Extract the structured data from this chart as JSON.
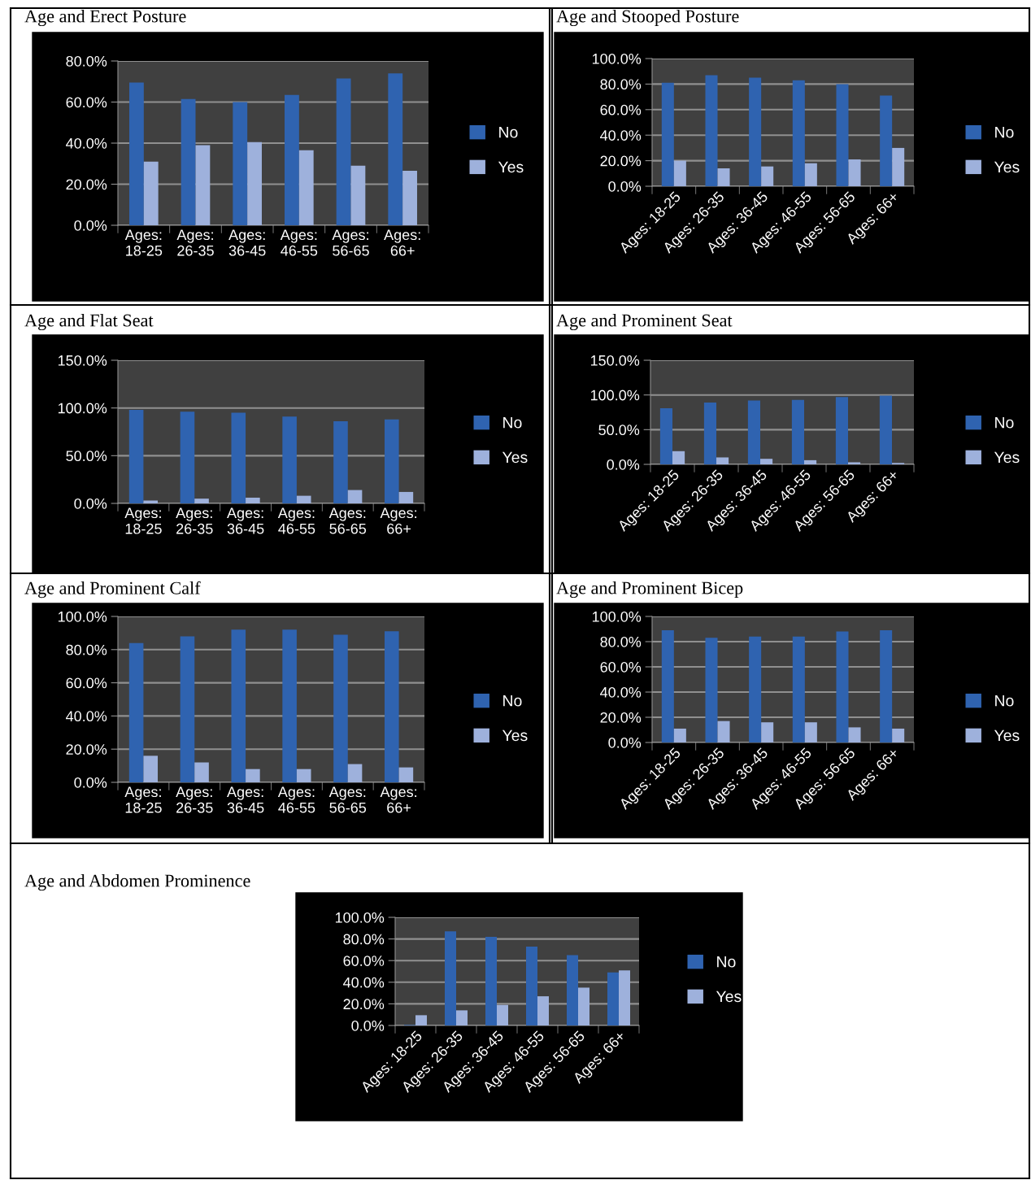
{
  "chart_data": [
    {
      "type": "bar",
      "title": "Age and Erect Posture",
      "categories": [
        "Ages: 18-25",
        "Ages: 26-35",
        "Ages: 36-45",
        "Ages: 46-55",
        "Ages: 56-65",
        "Ages: 66+"
      ],
      "series": [
        {
          "name": "No",
          "color": "#2f63b0",
          "values": [
            69.5,
            61.5,
            60,
            63.5,
            71.5,
            74
          ]
        },
        {
          "name": "Yes",
          "color": "#9eb1dc",
          "values": [
            31,
            39,
            40.5,
            36.5,
            29,
            26.5
          ]
        }
      ],
      "ylim": [
        0,
        80
      ],
      "yticks": [
        {
          "value": 0,
          "label": "0.0%"
        },
        {
          "value": 20,
          "label": "20.0%"
        },
        {
          "value": 40,
          "label": "40.0%"
        },
        {
          "value": 60,
          "label": "60.0%"
        },
        {
          "value": 80,
          "label": "80.0%"
        }
      ],
      "grid": "y",
      "legend": "right"
    },
    {
      "type": "bar",
      "title": "Age and Stooped Posture",
      "categories": [
        "Ages: 18-25",
        "Ages: 26-35",
        "Ages: 36-45",
        "Ages: 46-55",
        "Ages: 56-65",
        "Ages: 66+"
      ],
      "series": [
        {
          "name": "No",
          "color": "#2f63b0",
          "values": [
            81,
            87,
            85,
            83,
            80,
            71
          ]
        },
        {
          "name": "Yes",
          "color": "#9eb1dc",
          "values": [
            20,
            14,
            15.5,
            18,
            21,
            30
          ]
        }
      ],
      "ylim": [
        0,
        100
      ],
      "yticks": [
        {
          "value": 0,
          "label": "0.0%"
        },
        {
          "value": 20,
          "label": "20.0%"
        },
        {
          "value": 40,
          "label": "40.0%"
        },
        {
          "value": 60,
          "label": "60.0%"
        },
        {
          "value": 80,
          "label": "80.0%"
        },
        {
          "value": 100,
          "label": "100.0%"
        }
      ],
      "grid": "y",
      "legend": "right"
    },
    {
      "type": "bar",
      "title": "Age and Flat Seat",
      "categories": [
        "Ages: 18-25",
        "Ages: 26-35",
        "Ages: 36-45",
        "Ages: 46-55",
        "Ages: 56-65",
        "Ages: 66+"
      ],
      "series": [
        {
          "name": "No",
          "color": "#2f63b0",
          "values": [
            98,
            96,
            95,
            91,
            86,
            88
          ]
        },
        {
          "name": "Yes",
          "color": "#9eb1dc",
          "values": [
            3,
            5,
            6,
            8,
            14,
            12
          ]
        }
      ],
      "ylim": [
        0,
        150
      ],
      "yticks": [
        {
          "value": 0,
          "label": "0.0%"
        },
        {
          "value": 50,
          "label": "50.0%"
        },
        {
          "value": 100,
          "label": "100.0%"
        },
        {
          "value": 150,
          "label": "150.0%"
        }
      ],
      "grid": "y",
      "legend": "right"
    },
    {
      "type": "bar",
      "title": "Age and Prominent Seat",
      "categories": [
        "Ages: 18-25",
        "Ages: 26-35",
        "Ages: 36-45",
        "Ages: 46-55",
        "Ages: 56-65",
        "Ages: 66+"
      ],
      "series": [
        {
          "name": "No",
          "color": "#2f63b0",
          "values": [
            81,
            89,
            92,
            93,
            97,
            99
          ]
        },
        {
          "name": "Yes",
          "color": "#9eb1dc",
          "values": [
            19,
            10,
            8,
            6,
            3,
            2
          ]
        }
      ],
      "ylim": [
        0,
        150
      ],
      "yticks": [
        {
          "value": 0,
          "label": "0.0%"
        },
        {
          "value": 50,
          "label": "50.0%"
        },
        {
          "value": 100,
          "label": "100.0%"
        },
        {
          "value": 150,
          "label": "150.0%"
        }
      ],
      "grid": "y",
      "legend": "right"
    },
    {
      "type": "bar",
      "title": "Age and Prominent Calf",
      "categories": [
        "Ages: 18-25",
        "Ages: 26-35",
        "Ages: 36-45",
        "Ages: 46-55",
        "Ages: 56-65",
        "Ages: 66+"
      ],
      "series": [
        {
          "name": "No",
          "color": "#2f63b0",
          "values": [
            84,
            88,
            92,
            92,
            89,
            91
          ]
        },
        {
          "name": "Yes",
          "color": "#9eb1dc",
          "values": [
            16,
            12,
            8,
            8,
            11,
            9
          ]
        }
      ],
      "ylim": [
        0,
        100
      ],
      "yticks": [
        {
          "value": 0,
          "label": "0.0%"
        },
        {
          "value": 20,
          "label": "20.0%"
        },
        {
          "value": 40,
          "label": "40.0%"
        },
        {
          "value": 60,
          "label": "60.0%"
        },
        {
          "value": 80,
          "label": "80.0%"
        },
        {
          "value": 100,
          "label": "100.0%"
        }
      ],
      "grid": "y",
      "legend": "right"
    },
    {
      "type": "bar",
      "title": "Age and Prominent Bicep",
      "categories": [
        "Ages: 18-25",
        "Ages: 26-35",
        "Ages: 36-45",
        "Ages: 46-55",
        "Ages: 56-65",
        "Ages: 66+"
      ],
      "series": [
        {
          "name": "No",
          "color": "#2f63b0",
          "values": [
            89,
            83,
            84,
            84,
            88,
            89
          ]
        },
        {
          "name": "Yes",
          "color": "#9eb1dc",
          "values": [
            11,
            17,
            16,
            16,
            12,
            11
          ]
        }
      ],
      "ylim": [
        0,
        100
      ],
      "yticks": [
        {
          "value": 0,
          "label": "0.0%"
        },
        {
          "value": 20,
          "label": "20.0%"
        },
        {
          "value": 40,
          "label": "40.0%"
        },
        {
          "value": 60,
          "label": "60.0%"
        },
        {
          "value": 80,
          "label": "80.0%"
        },
        {
          "value": 100,
          "label": "100.0%"
        }
      ],
      "grid": "y",
      "legend": "right"
    },
    {
      "type": "bar",
      "title": "Age and Abdomen Prominence",
      "categories": [
        "Ages: 18-25",
        "Ages: 26-35",
        "Ages: 36-45",
        "Ages: 46-55",
        "Ages: 56-65",
        "Ages: 66+"
      ],
      "series": [
        {
          "name": "No",
          "color": "#2f63b0",
          "values": [
            0.5,
            87,
            82,
            73,
            65,
            49
          ]
        },
        {
          "name": "Yes",
          "color": "#9eb1dc",
          "values": [
            9.5,
            14,
            19,
            27,
            35,
            51
          ]
        }
      ],
      "ylim": [
        0,
        100
      ],
      "yticks": [
        {
          "value": 0,
          "label": "0.0%"
        },
        {
          "value": 20,
          "label": "20.0%"
        },
        {
          "value": 40,
          "label": "40.0%"
        },
        {
          "value": 60,
          "label": "60.0%"
        },
        {
          "value": 80,
          "label": "80.0%"
        },
        {
          "value": 100,
          "label": "100.0%"
        }
      ],
      "grid": "y",
      "legend": "right"
    }
  ]
}
